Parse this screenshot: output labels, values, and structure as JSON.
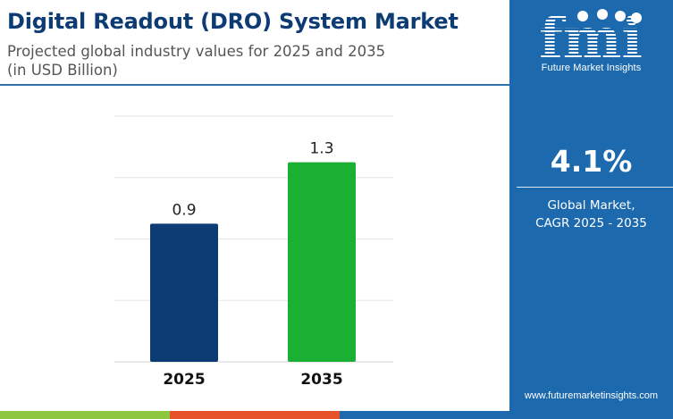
{
  "header": {
    "title": "Digital Readout (DRO) System Market",
    "subtitle_line1": "Projected global industry values for 2025 and 2035",
    "subtitle_line2": "(in USD Billion)"
  },
  "chart_data": {
    "type": "bar",
    "title": "Digital Readout (DRO) System Market",
    "subtitle": "Projected global industry values for 2025 and 2035 (in USD Billion)",
    "categories": [
      "2025",
      "2035"
    ],
    "values": [
      0.9,
      1.3
    ],
    "data_labels": [
      "0.9",
      "1.3"
    ],
    "bar_colors": [
      "#0d3b73",
      "#19b034"
    ],
    "xlabel": "",
    "ylabel": "",
    "ylim": [
      0,
      1.6
    ],
    "grid": true,
    "legend": "none"
  },
  "sidebar": {
    "logo_text": "fmi",
    "logo_caption": "Future Market Insights",
    "cagr_value": "4.1%",
    "cagr_label_line1": "Global Market,",
    "cagr_label_line2": "CAGR 2025 - 2035",
    "website": "www.futuremarketinsights.com",
    "background_color": "#1d69ad"
  },
  "footer": {
    "stripe_colors": [
      "#8dc63f",
      "#e8522a",
      "#1d69ad"
    ]
  }
}
